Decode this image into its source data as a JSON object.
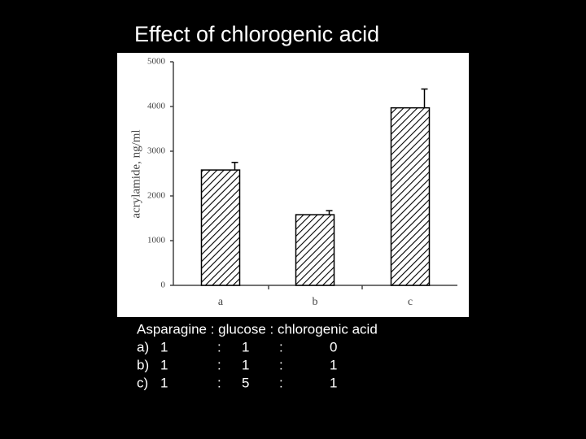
{
  "chart_data": {
    "type": "bar",
    "title": "Effect of chlorogenic acid",
    "y_label": "acrylamide, ng/ml",
    "categories": [
      "a",
      "b",
      "c"
    ],
    "values": [
      2580,
      1580,
      3970
    ],
    "errors": [
      170,
      90,
      420
    ],
    "color": "#000000",
    "ylim": [
      0,
      5000
    ],
    "yticks": [
      0,
      1000,
      2000,
      3000,
      4000,
      5000
    ],
    "grid": false
  },
  "caption": {
    "header": "Asparagine : glucose : chlorogenic acid",
    "rows": [
      [
        "a)",
        "1",
        ":",
        "1",
        ":",
        "0"
      ],
      [
        "b)",
        "1",
        ":",
        "1",
        ":",
        "1"
      ],
      [
        "c)",
        "1",
        ":",
        "5",
        ":",
        "1"
      ]
    ]
  }
}
